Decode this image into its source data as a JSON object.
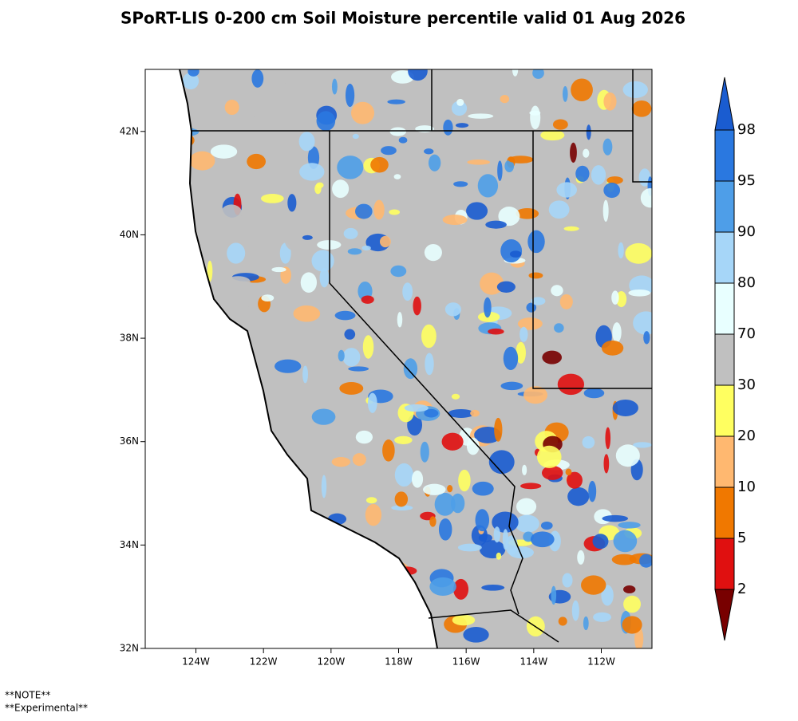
{
  "title": "SPoRT-LIS 0-200 cm Soil Moisture percentile valid 01 Aug 2026",
  "map": {
    "xlim": [
      -125.5,
      -110.5
    ],
    "ylim": [
      32,
      43.2
    ],
    "xticks": [
      {
        "value": -124,
        "label": "124W"
      },
      {
        "value": -122,
        "label": "122W"
      },
      {
        "value": -120,
        "label": "120W"
      },
      {
        "value": -118,
        "label": "118W"
      },
      {
        "value": -116,
        "label": "116W"
      },
      {
        "value": -114,
        "label": "114W"
      },
      {
        "value": -112,
        "label": "112W"
      }
    ],
    "yticks": [
      {
        "value": 32,
        "label": "32N"
      },
      {
        "value": 34,
        "label": "34N"
      },
      {
        "value": 36,
        "label": "36N"
      },
      {
        "value": 38,
        "label": "38N"
      },
      {
        "value": 40,
        "label": "40N"
      },
      {
        "value": 42,
        "label": "42N"
      }
    ]
  },
  "colorbar": {
    "levels": [
      2,
      5,
      10,
      20,
      30,
      70,
      80,
      90,
      95,
      98
    ],
    "colors": [
      "#780000",
      "#e01010",
      "#f07800",
      "#ffb870",
      "#ffff60",
      "#c0c0c0",
      "#e8ffff",
      "#a6d6f8",
      "#4e9ee8",
      "#2a78e0",
      "#1a5cd0"
    ]
  },
  "notes": [
    "**NOTE**",
    "**Experimental**"
  ]
}
